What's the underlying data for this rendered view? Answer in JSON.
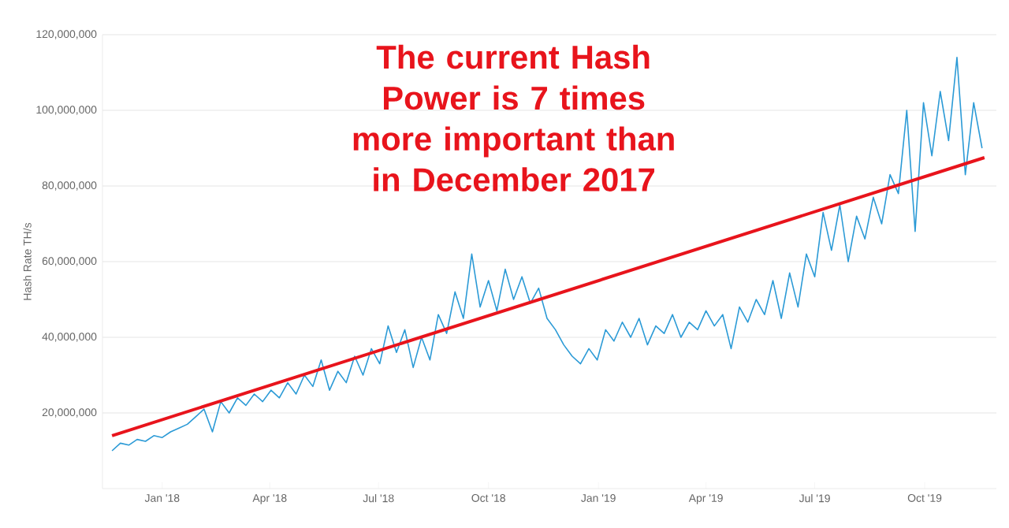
{
  "chart_data": {
    "type": "line",
    "title": "The current Hash Power is 7 times more important than in December 2017",
    "ylabel": "Hash Rate TH/s",
    "xlim": [
      "2017-11-12",
      "2019-11-30"
    ],
    "ylim": [
      0,
      120000000
    ],
    "xticks": [
      {
        "value": "2018-01-01",
        "label": "Jan '18"
      },
      {
        "value": "2018-04-01",
        "label": "Apr '18"
      },
      {
        "value": "2018-07-01",
        "label": "Jul '18"
      },
      {
        "value": "2018-10-01",
        "label": "Oct '18"
      },
      {
        "value": "2019-01-01",
        "label": "Jan '19"
      },
      {
        "value": "2019-04-01",
        "label": "Apr '19"
      },
      {
        "value": "2019-07-01",
        "label": "Jul '19"
      },
      {
        "value": "2019-10-01",
        "label": "Oct '19"
      }
    ],
    "yticks": [
      {
        "value": 20000000,
        "label": "20,000,000"
      },
      {
        "value": 40000000,
        "label": "40,000,000"
      },
      {
        "value": 60000000,
        "label": "60,000,000"
      },
      {
        "value": 80000000,
        "label": "80,000,000"
      },
      {
        "value": 100000000,
        "label": "100,000,000"
      },
      {
        "value": 120000000,
        "label": "120,000,000"
      }
    ],
    "grid": "y",
    "marker": "none",
    "line_style": "solid",
    "series": [
      {
        "color": "#2b9ad6",
        "x": [
          "2017-11-20",
          "2017-11-27",
          "2017-12-04",
          "2017-12-11",
          "2017-12-18",
          "2017-12-25",
          "2018-01-01",
          "2018-01-08",
          "2018-01-15",
          "2018-01-22",
          "2018-01-29",
          "2018-02-05",
          "2018-02-12",
          "2018-02-19",
          "2018-02-26",
          "2018-03-05",
          "2018-03-12",
          "2018-03-19",
          "2018-03-26",
          "2018-04-02",
          "2018-04-09",
          "2018-04-16",
          "2018-04-23",
          "2018-04-30",
          "2018-05-07",
          "2018-05-14",
          "2018-05-21",
          "2018-05-28",
          "2018-06-04",
          "2018-06-11",
          "2018-06-18",
          "2018-06-25",
          "2018-07-02",
          "2018-07-09",
          "2018-07-16",
          "2018-07-23",
          "2018-07-30",
          "2018-08-06",
          "2018-08-13",
          "2018-08-20",
          "2018-08-27",
          "2018-09-03",
          "2018-09-10",
          "2018-09-17",
          "2018-09-24",
          "2018-10-01",
          "2018-10-08",
          "2018-10-15",
          "2018-10-22",
          "2018-10-29",
          "2018-11-05",
          "2018-11-12",
          "2018-11-19",
          "2018-11-26",
          "2018-12-03",
          "2018-12-10",
          "2018-12-17",
          "2018-12-24",
          "2018-12-31",
          "2019-01-07",
          "2019-01-14",
          "2019-01-21",
          "2019-01-28",
          "2019-02-04",
          "2019-02-11",
          "2019-02-18",
          "2019-02-25",
          "2019-03-04",
          "2019-03-11",
          "2019-03-18",
          "2019-03-25",
          "2019-04-01",
          "2019-04-08",
          "2019-04-15",
          "2019-04-22",
          "2019-04-29",
          "2019-05-06",
          "2019-05-13",
          "2019-05-20",
          "2019-05-27",
          "2019-06-03",
          "2019-06-10",
          "2019-06-17",
          "2019-06-24",
          "2019-07-01",
          "2019-07-08",
          "2019-07-15",
          "2019-07-22",
          "2019-07-29",
          "2019-08-05",
          "2019-08-12",
          "2019-08-19",
          "2019-08-26",
          "2019-09-02",
          "2019-09-09",
          "2019-09-16",
          "2019-09-23",
          "2019-09-30",
          "2019-10-07",
          "2019-10-14",
          "2019-10-21",
          "2019-10-28",
          "2019-11-04",
          "2019-11-11",
          "2019-11-18"
        ],
        "values": [
          10000000,
          12000000,
          11500000,
          13000000,
          12500000,
          14000000,
          13500000,
          15000000,
          16000000,
          17000000,
          19000000,
          21000000,
          15000000,
          23000000,
          20000000,
          24000000,
          22000000,
          25000000,
          23000000,
          26000000,
          24000000,
          28000000,
          25000000,
          30000000,
          27000000,
          34000000,
          26000000,
          31000000,
          28000000,
          35000000,
          30000000,
          37000000,
          33000000,
          43000000,
          36000000,
          42000000,
          32000000,
          40000000,
          34000000,
          46000000,
          41000000,
          52000000,
          45000000,
          62000000,
          48000000,
          55000000,
          47000000,
          58000000,
          50000000,
          56000000,
          49000000,
          53000000,
          45000000,
          42000000,
          38000000,
          35000000,
          33000000,
          37000000,
          34000000,
          42000000,
          39000000,
          44000000,
          40000000,
          45000000,
          38000000,
          43000000,
          41000000,
          46000000,
          40000000,
          44000000,
          42000000,
          47000000,
          43000000,
          46000000,
          37000000,
          48000000,
          44000000,
          50000000,
          46000000,
          55000000,
          45000000,
          57000000,
          48000000,
          62000000,
          56000000,
          73000000,
          63000000,
          75000000,
          60000000,
          72000000,
          66000000,
          77000000,
          70000000,
          83000000,
          78000000,
          100000000,
          68000000,
          102000000,
          88000000,
          105000000,
          92000000,
          114000000,
          83000000,
          102000000,
          90000000
        ]
      },
      {
        "type": "line",
        "color": "#e8141c",
        "x": [
          "2017-11-20",
          "2019-11-20"
        ],
        "values": [
          14000000,
          87500000
        ]
      }
    ]
  }
}
